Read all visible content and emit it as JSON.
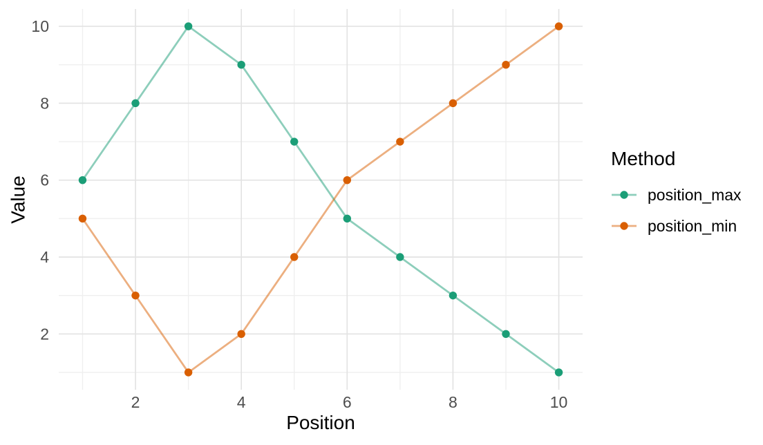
{
  "chart_data": {
    "type": "line",
    "title": "",
    "xlabel": "Position",
    "ylabel": "Value",
    "legend": {
      "title": "Method",
      "position": "right"
    },
    "x": [
      1,
      2,
      3,
      4,
      5,
      6,
      7,
      8,
      9,
      10
    ],
    "series": [
      {
        "name": "position_max",
        "values": [
          6,
          8,
          10,
          9,
          7,
          5,
          4,
          3,
          2,
          1
        ],
        "point_color": "#1B9E77",
        "line_color": "rgba(27,158,119,0.5)"
      },
      {
        "name": "position_min",
        "values": [
          5,
          3,
          1,
          2,
          4,
          6,
          7,
          8,
          9,
          10
        ],
        "point_color": "#D95F02",
        "line_color": "rgba(217,95,2,0.5)"
      }
    ],
    "xlim": [
      0.55,
      10.45
    ],
    "ylim": [
      0.55,
      10.45
    ],
    "x_major_ticks": [
      2,
      4,
      6,
      8,
      10
    ],
    "x_minor_ticks": [
      1,
      3,
      5,
      7,
      9
    ],
    "y_major_ticks": [
      2,
      4,
      6,
      8,
      10
    ],
    "y_minor_ticks": [
      1,
      3,
      5,
      7,
      9
    ],
    "grid": "major+minor",
    "theme": {
      "background": "#FFFFFF",
      "grid_major_color": "#E3E3E3",
      "grid_minor_color": "#EFEFEF",
      "tick_label_color": "#4D4D4D",
      "text_color": "#000000"
    }
  }
}
